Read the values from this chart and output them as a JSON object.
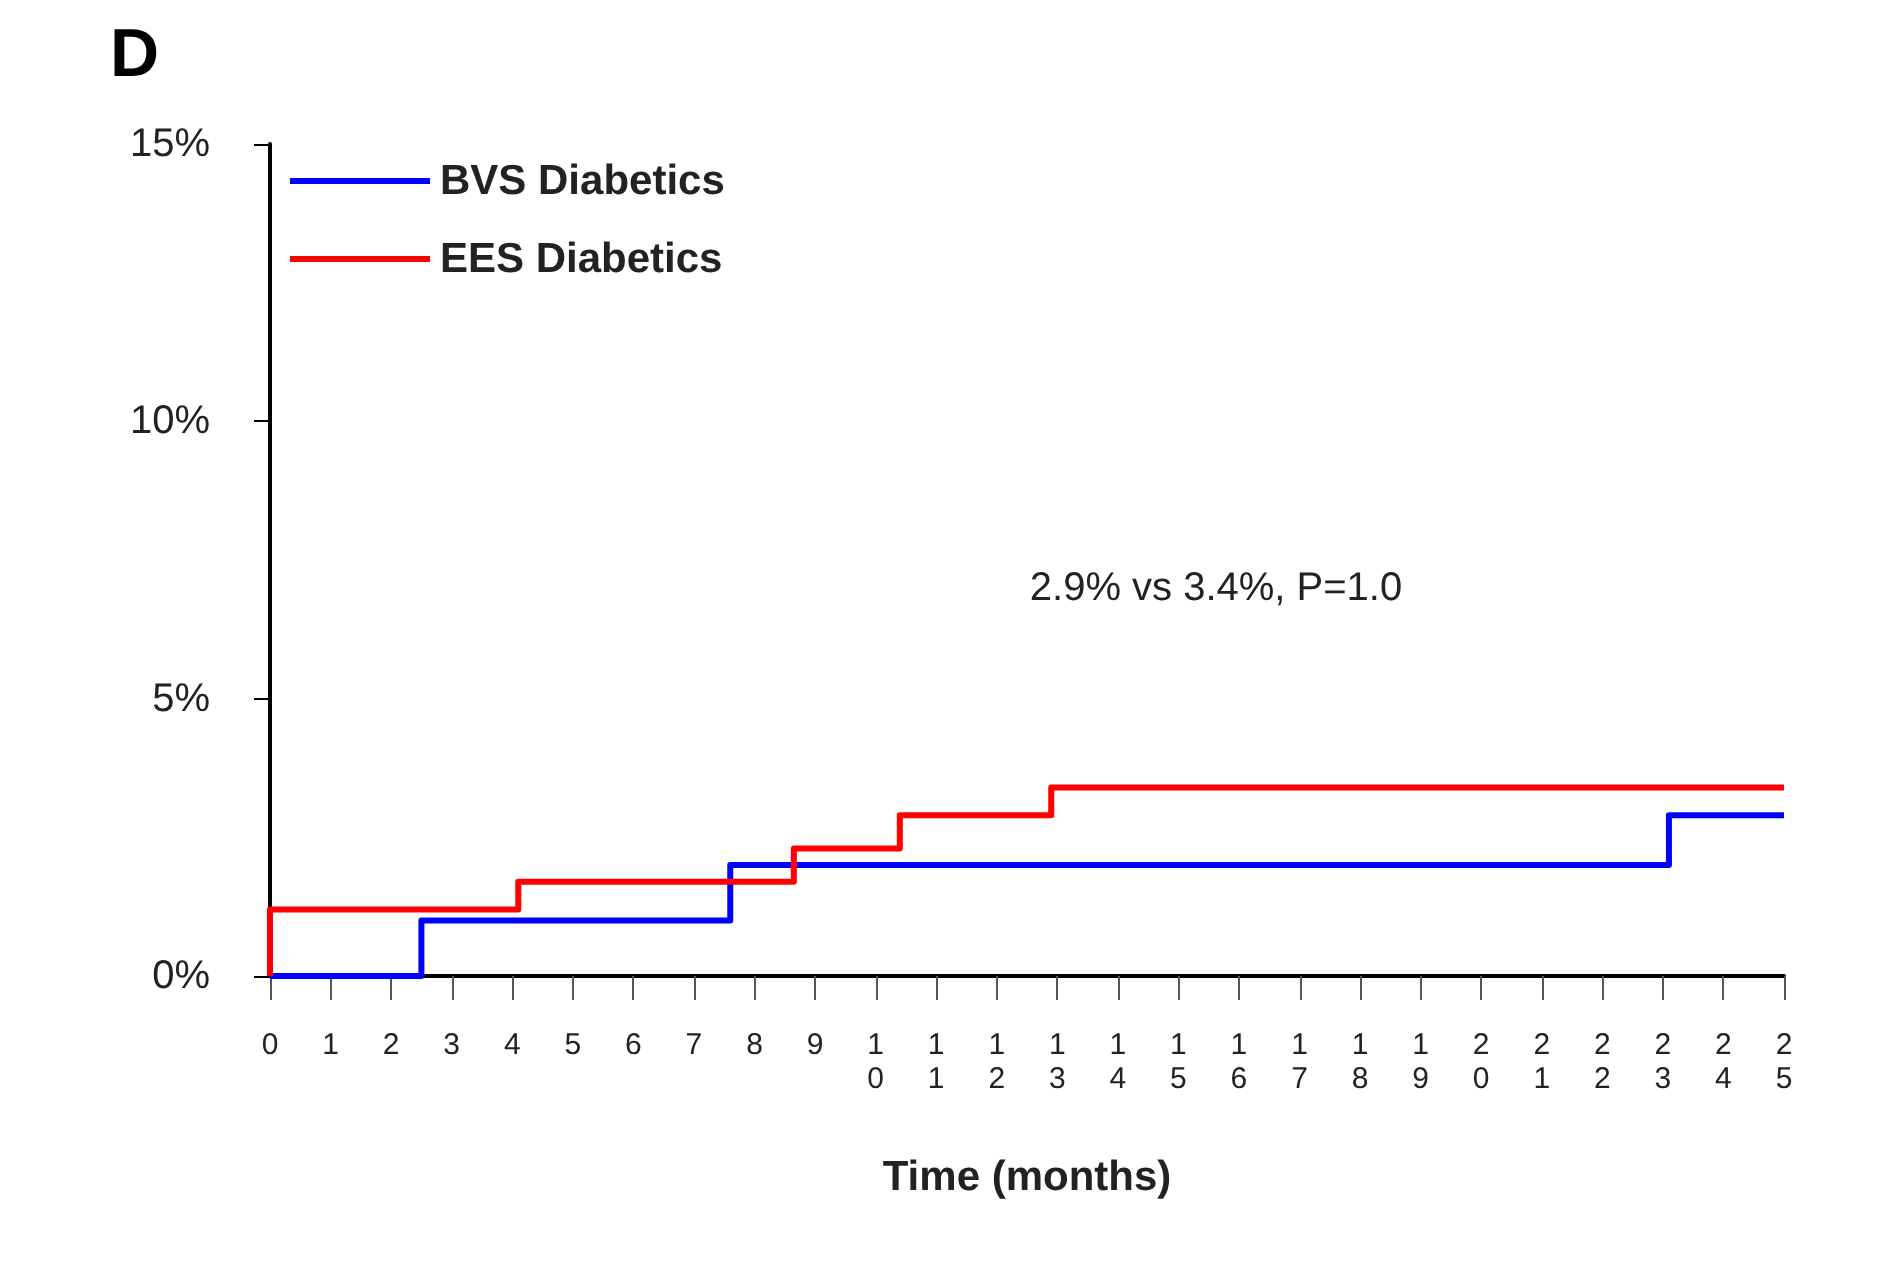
{
  "chart_data": {
    "type": "step",
    "title": "D",
    "xlabel": "Time (months)",
    "series": [
      {
        "name": "BVS Diabetics",
        "color": "#0000ff",
        "x": [
          0,
          2.5,
          7.6,
          23.1,
          25
        ],
        "values": [
          0,
          1,
          2,
          2.9,
          2.9
        ]
      },
      {
        "name": "EES Diabetics",
        "color": "#ff0000",
        "x": [
          0,
          0,
          4.1,
          8.65,
          10.4,
          12.9,
          25
        ],
        "values": [
          0,
          1.2,
          1.7,
          2.3,
          2.9,
          3.4,
          3.4
        ]
      }
    ],
    "xlim": [
      0,
      25
    ],
    "xticks": [
      0,
      1,
      2,
      3,
      4,
      5,
      6,
      7,
      8,
      9,
      10,
      11,
      12,
      13,
      14,
      15,
      16,
      17,
      18,
      19,
      20,
      21,
      22,
      23,
      24,
      25
    ],
    "ylim": [
      0,
      15
    ],
    "yticks": [
      {
        "value": 0,
        "label": "0%"
      },
      {
        "value": 5,
        "label": "5%"
      },
      {
        "value": 10,
        "label": "10%"
      },
      {
        "value": 15,
        "label": "15%"
      }
    ],
    "annotations": [
      "2.9% vs 3.4%, P=1.0"
    ],
    "grid": false,
    "legend": "top left",
    "marker": "none",
    "line_style": "solid"
  }
}
